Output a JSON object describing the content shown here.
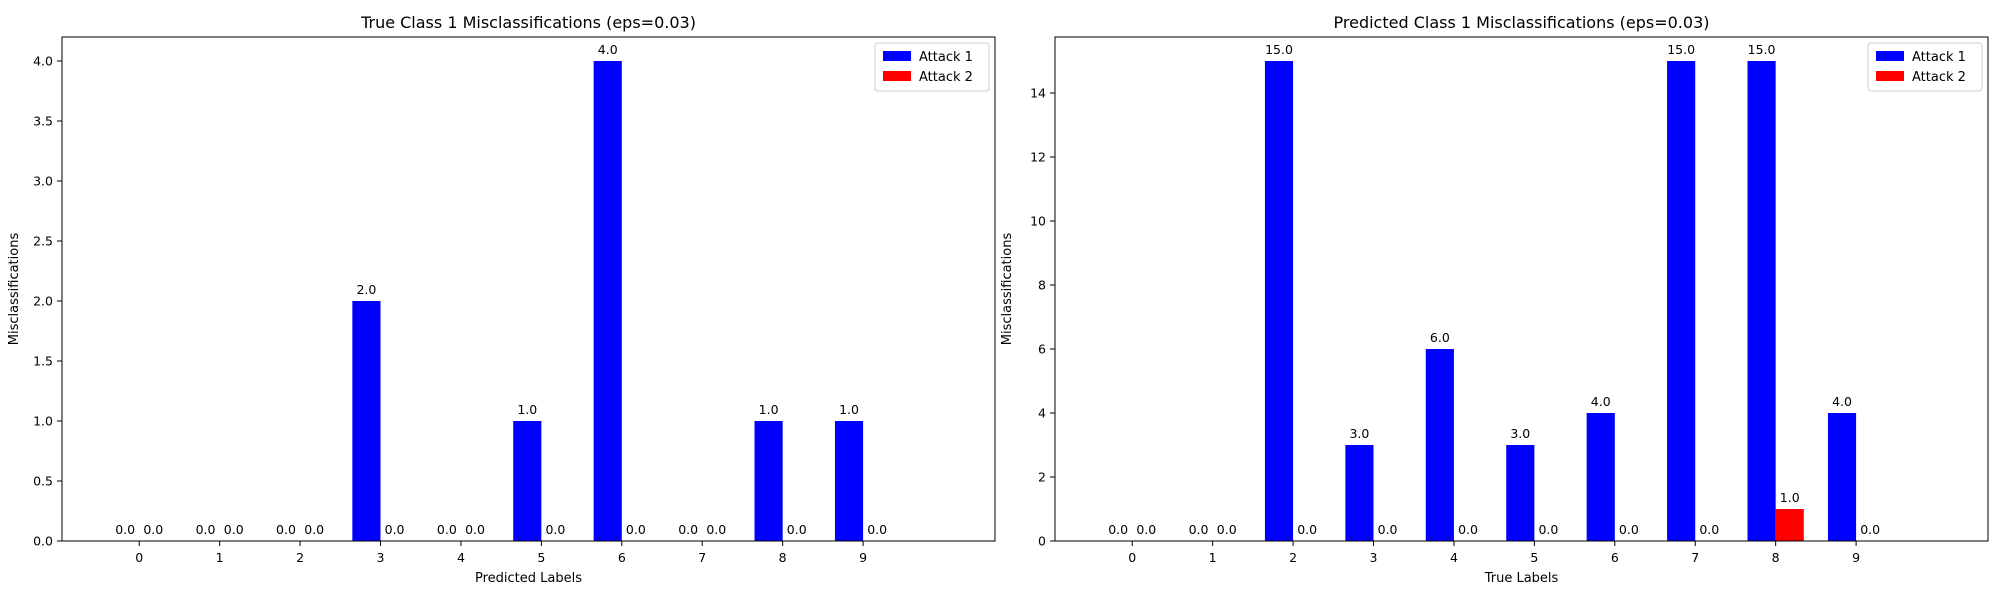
{
  "chart_data": [
    {
      "type": "bar",
      "title": "True Class 1 Misclassifications (eps=0.03)",
      "xlabel": "Predicted Labels",
      "ylabel": "Misclassifications",
      "categories": [
        "0",
        "1",
        "2",
        "3",
        "4",
        "5",
        "6",
        "7",
        "8",
        "9"
      ],
      "series": [
        {
          "name": "Attack 1",
          "color": "#0000ff",
          "values": [
            0.0,
            0.0,
            0.0,
            2.0,
            0.0,
            1.0,
            4.0,
            0.0,
            1.0,
            1.0
          ]
        },
        {
          "name": "Attack 2",
          "color": "#ff0000",
          "values": [
            0.0,
            0.0,
            0.0,
            0.0,
            0.0,
            0.0,
            0.0,
            0.0,
            0.0,
            0.0
          ]
        }
      ],
      "ylim": [
        0,
        4.2
      ],
      "yticks": [
        "0.0",
        "0.5",
        "1.0",
        "1.5",
        "2.0",
        "2.5",
        "3.0",
        "3.5",
        "4.0"
      ],
      "legend": "top-right",
      "grid": false
    },
    {
      "type": "bar",
      "title": "Predicted Class 1 Misclassifications (eps=0.03)",
      "xlabel": "True Labels",
      "ylabel": "Misclassifications",
      "categories": [
        "0",
        "1",
        "2",
        "3",
        "4",
        "5",
        "6",
        "7",
        "8",
        "9"
      ],
      "series": [
        {
          "name": "Attack 1",
          "color": "#0000ff",
          "values": [
            0.0,
            0.0,
            15.0,
            3.0,
            6.0,
            3.0,
            4.0,
            15.0,
            15.0,
            4.0
          ]
        },
        {
          "name": "Attack 2",
          "color": "#ff0000",
          "values": [
            0.0,
            0.0,
            0.0,
            0.0,
            0.0,
            0.0,
            0.0,
            0.0,
            1.0,
            0.0
          ]
        }
      ],
      "ylim": [
        0,
        15.75
      ],
      "yticks": [
        "0",
        "2",
        "4",
        "6",
        "8",
        "10",
        "12",
        "14"
      ],
      "legend": "top-right",
      "grid": false
    }
  ]
}
